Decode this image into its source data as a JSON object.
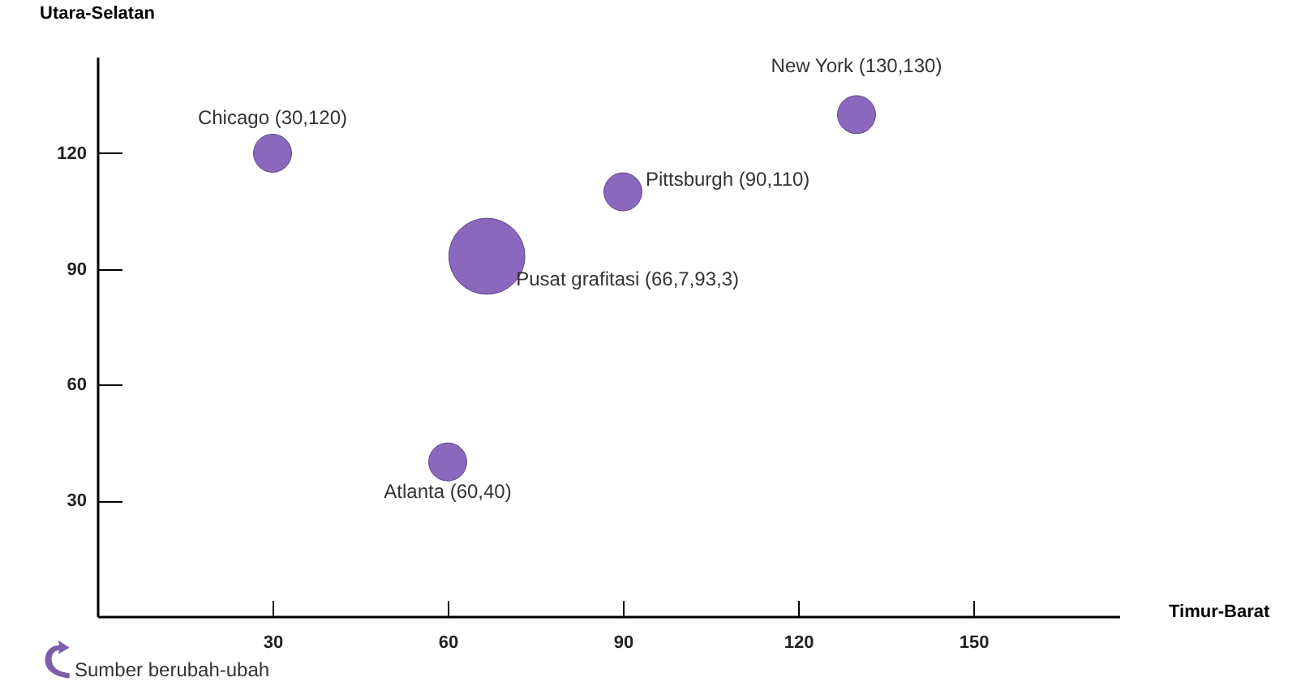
{
  "chart_data": {
    "type": "bubble",
    "xlabel": "Timur-Barat",
    "ylabel": "Utara-Selatan",
    "x": [
      30,
      130,
      90,
      66.7,
      60
    ],
    "series": [
      {
        "color": "#8a68bd",
        "values": [
          120,
          130,
          110,
          93.3,
          40
        ],
        "sizes": [
          0.25,
          0.25,
          0.25,
          1,
          0.25
        ]
      }
    ],
    "xlim": [
      0,
      175
    ],
    "ylim": [
      0,
      145
    ],
    "xticks": [
      30,
      60,
      90,
      120,
      150
    ],
    "yticks": [
      30,
      60,
      90,
      120
    ],
    "grid": false,
    "legend": false,
    "annotations": [
      {
        "text": "Chicago (30,120)",
        "x": 30,
        "y": 120
      },
      {
        "text": "New York (130,130)",
        "x": 130,
        "y": 130
      },
      {
        "text": "Pittsburgh (90,110)",
        "x": 90,
        "y": 110
      },
      {
        "text": "Pusat grafitasi (66,7,93,3)",
        "x": 66.7,
        "y": 93.3
      },
      {
        "text": "Atlanta (60,40)",
        "x": 60,
        "y": 40
      },
      "Sumber berubah-ubah"
    ]
  }
}
